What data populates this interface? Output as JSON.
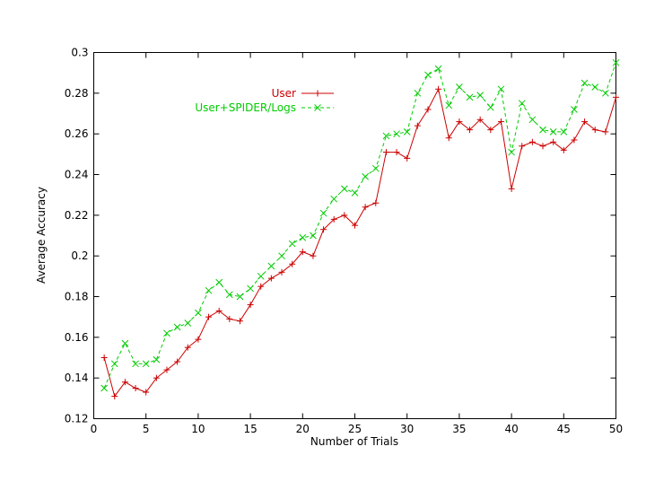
{
  "chart_data": {
    "type": "line",
    "title": "",
    "xlabel": "Number of Trials",
    "ylabel": "Average Accuracy",
    "xlim": [
      0,
      50
    ],
    "ylim": [
      0.12,
      0.3
    ],
    "grid": false,
    "legend_position": "top-left",
    "x_ticks": [
      "0",
      "5",
      "10",
      "15",
      "20",
      "25",
      "30",
      "35",
      "40",
      "45",
      "50"
    ],
    "y_ticks": [
      "0.12",
      "0.14",
      "0.16",
      "0.18",
      "0.2",
      "0.22",
      "0.24",
      "0.26",
      "0.28",
      "0.3"
    ],
    "x": [
      1,
      2,
      3,
      4,
      5,
      6,
      7,
      8,
      9,
      10,
      11,
      12,
      13,
      14,
      15,
      16,
      17,
      18,
      19,
      20,
      21,
      22,
      23,
      24,
      25,
      26,
      27,
      28,
      29,
      30,
      31,
      32,
      33,
      34,
      35,
      36,
      37,
      38,
      39,
      40,
      41,
      42,
      43,
      44,
      45,
      46,
      47,
      48,
      49,
      50
    ],
    "series": [
      {
        "name": "User",
        "color": "#cc0000",
        "marker": "plus",
        "dash": "solid",
        "values": [
          0.15,
          0.131,
          0.138,
          0.135,
          0.133,
          0.14,
          0.144,
          0.148,
          0.155,
          0.159,
          0.17,
          0.173,
          0.169,
          0.168,
          0.176,
          0.185,
          0.189,
          0.192,
          0.196,
          0.202,
          0.2,
          0.213,
          0.218,
          0.22,
          0.215,
          0.224,
          0.226,
          0.251,
          0.251,
          0.248,
          0.264,
          0.272,
          0.282,
          0.258,
          0.266,
          0.262,
          0.267,
          0.262,
          0.266,
          0.233,
          0.254,
          0.256,
          0.254,
          0.256,
          0.252,
          0.257,
          0.266,
          0.262,
          0.261,
          0.278
        ]
      },
      {
        "name": "User+SPIDER/Logs",
        "color": "#00cc00",
        "marker": "cross",
        "dash": "dashed",
        "values": [
          0.135,
          0.147,
          0.157,
          0.147,
          0.147,
          0.149,
          0.162,
          0.165,
          0.167,
          0.172,
          0.183,
          0.187,
          0.181,
          0.18,
          0.184,
          0.19,
          0.195,
          0.2,
          0.206,
          0.209,
          0.21,
          0.221,
          0.228,
          0.233,
          0.231,
          0.239,
          0.243,
          0.259,
          0.26,
          0.261,
          0.28,
          0.289,
          0.292,
          0.274,
          0.283,
          0.278,
          0.279,
          0.273,
          0.282,
          0.251,
          0.275,
          0.267,
          0.262,
          0.261,
          0.261,
          0.272,
          0.285,
          0.283,
          0.28,
          0.295
        ]
      }
    ]
  }
}
